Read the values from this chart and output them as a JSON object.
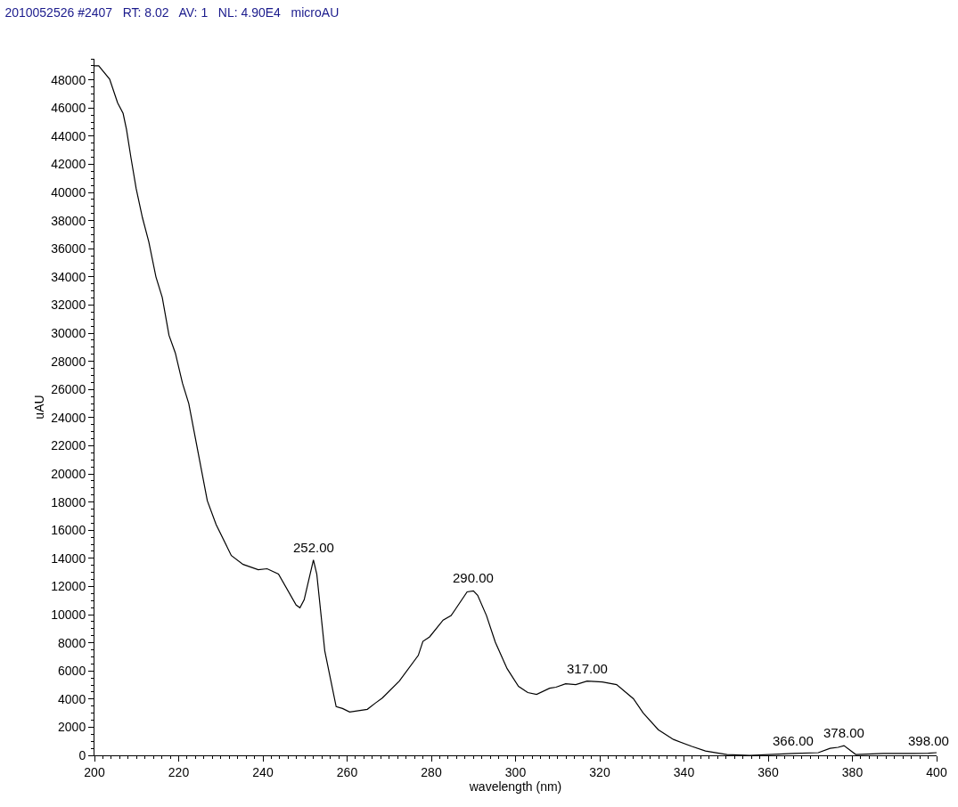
{
  "chart_data": {
    "type": "line",
    "title": "2010052526 #2407   RT: 8.02   AV: 1   NL: 4.90E4   microAU",
    "xlabel": "wavelength (nm)",
    "ylabel": "uAU",
    "x": [
      200,
      201,
      203.6,
      205.5,
      206.8,
      207.6,
      208.7,
      209.9,
      211.4,
      212.9,
      214.6,
      216.1,
      217.7,
      219.2,
      220.9,
      222.4,
      226.8,
      228.9,
      232.5,
      235.3,
      238.9,
      241,
      243.7,
      247.9,
      248.8,
      249.8,
      252,
      252.8,
      254.7,
      257.4,
      258.9,
      260.6,
      264.8,
      266.7,
      268.4,
      272.4,
      276.9,
      278,
      279.6,
      282.8,
      284.7,
      288.5,
      290,
      291,
      293.1,
      295.2,
      298,
      300.7,
      302.9,
      305,
      308.1,
      309.6,
      311.9,
      314.3,
      317,
      320.6,
      324,
      328,
      330.3,
      333.9,
      337.5,
      341.9,
      345.1,
      350.2,
      355.6,
      366,
      371.9,
      374.7,
      376.6,
      378,
      380.8,
      387.3,
      394.5,
      398,
      400
    ],
    "series": [
      {
        "color": "#000000",
        "values": [
          49000,
          49000,
          48060,
          46370,
          45620,
          44490,
          42410,
          40280,
          38200,
          36500,
          34000,
          32550,
          29850,
          28600,
          26450,
          25000,
          18090,
          16400,
          14200,
          13570,
          13190,
          13260,
          12880,
          10680,
          10490,
          11060,
          13880,
          12880,
          7410,
          3460,
          3330,
          3080,
          3270,
          3710,
          4080,
          5280,
          7100,
          8100,
          8420,
          9610,
          9930,
          11620,
          11690,
          11370,
          9930,
          8040,
          6160,
          4900,
          4460,
          4330,
          4770,
          4840,
          5090,
          5030,
          5280,
          5210,
          5030,
          4020,
          3020,
          1820,
          1130,
          630,
          310,
          60,
          0,
          130,
          190,
          500,
          570,
          690,
          60,
          130,
          130,
          150,
          190
        ]
      }
    ],
    "annotations": [
      {
        "text": "252.00",
        "x": 252,
        "y": 13880
      },
      {
        "text": "290.00",
        "x": 290,
        "y": 11690
      },
      {
        "text": "317.00",
        "x": 317,
        "y": 5280
      },
      {
        "text": "366.00",
        "x": 366,
        "y": 130
      },
      {
        "text": "378.00",
        "x": 378,
        "y": 690
      },
      {
        "text": "398.00",
        "x": 398,
        "y": 150
      }
    ],
    "xlim": [
      200,
      400
    ],
    "xticks": [
      200,
      220,
      240,
      260,
      280,
      300,
      320,
      340,
      360,
      380,
      400
    ],
    "ylim": [
      0,
      49500
    ],
    "yticks": [
      0,
      2000,
      4000,
      6000,
      8000,
      10000,
      12000,
      14000,
      16000,
      18000,
      20000,
      22000,
      24000,
      26000,
      28000,
      30000,
      32000,
      34000,
      36000,
      38000,
      40000,
      42000,
      44000,
      46000,
      48000
    ],
    "marker": "none",
    "line_style": "solid"
  }
}
